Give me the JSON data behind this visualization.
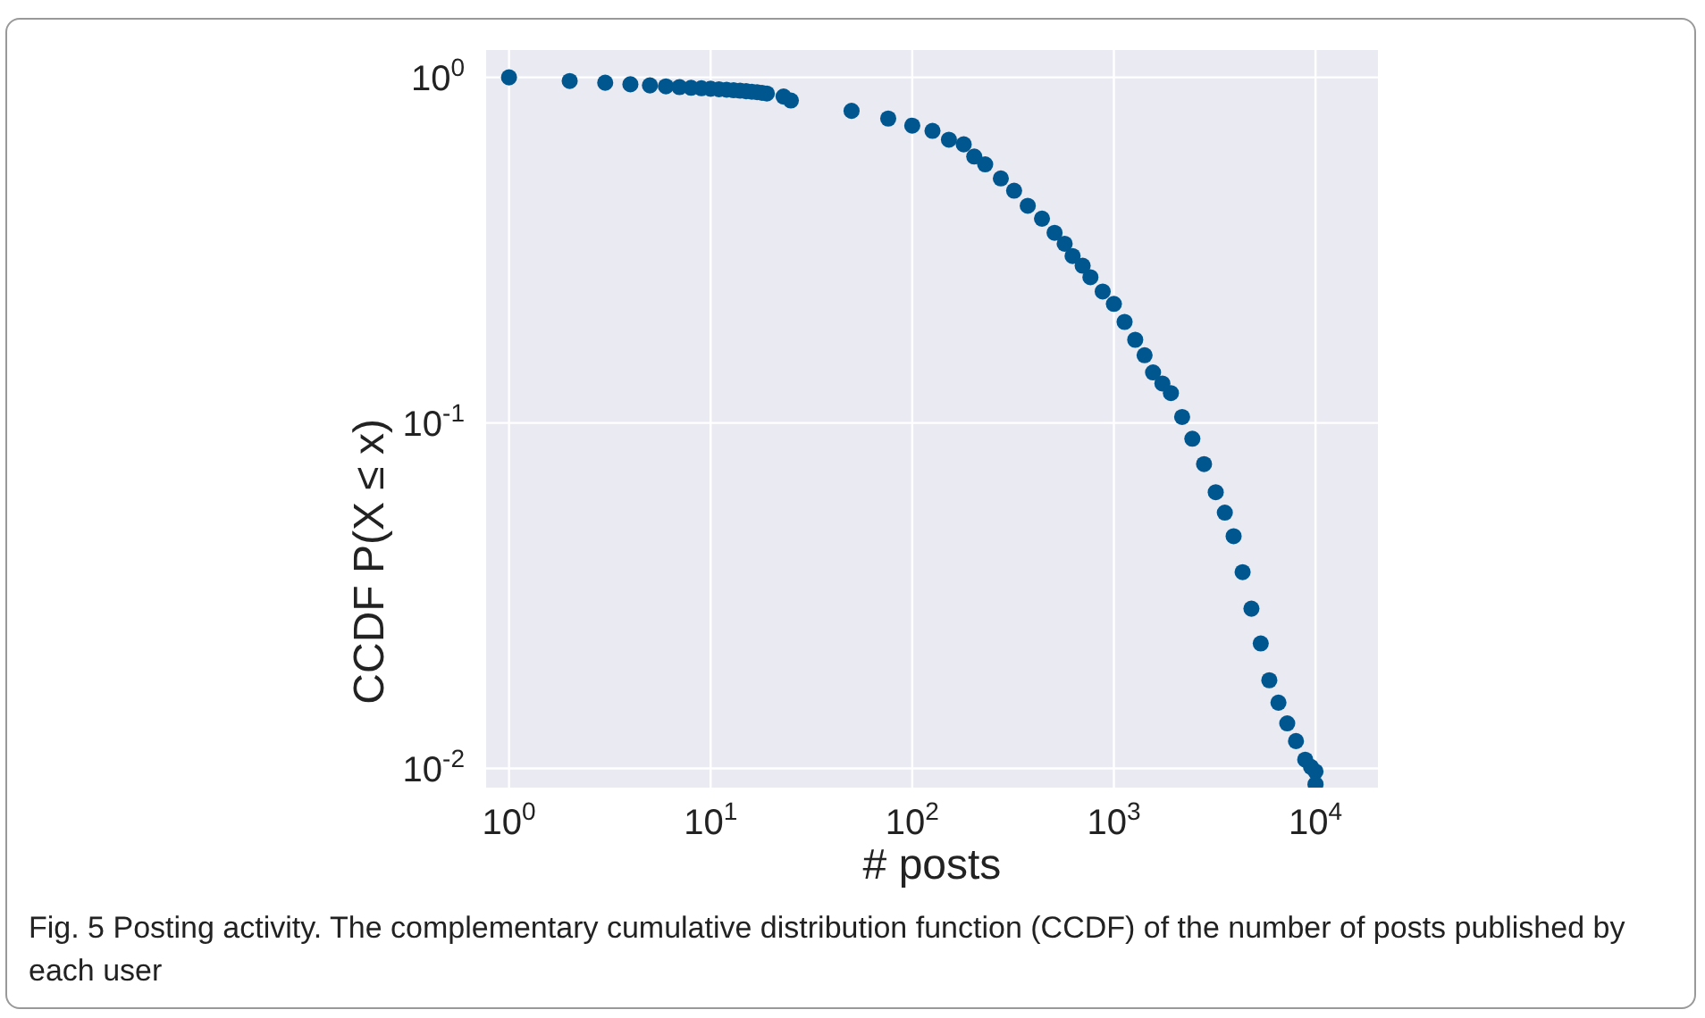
{
  "chart_data": {
    "type": "scatter",
    "xlabel": "# posts",
    "ylabel": "CCDF P(X ≤ x)",
    "log": "xy",
    "grid": true,
    "marker": "circle",
    "xlim": [
      0.77,
      20400
    ],
    "ylim": [
      0.0088,
      1.2
    ],
    "xticks": [
      {
        "value": 1,
        "label": "10$^{0}$"
      },
      {
        "value": 10,
        "label": "10$^{1}$"
      },
      {
        "value": 100,
        "label": "10$^{2}$"
      },
      {
        "value": 1000,
        "label": "10$^{3}$"
      },
      {
        "value": 10000,
        "label": "10$^{4}$"
      }
    ],
    "yticks": [
      {
        "value": 0.01,
        "label": "10$^{-2}$"
      },
      {
        "value": 0.1,
        "label": "10$^{-1}$"
      },
      {
        "value": 1,
        "label": "10$^{0}$"
      }
    ],
    "x": [
      1,
      2,
      3,
      4,
      5,
      6,
      7,
      8,
      9,
      10,
      11,
      12,
      13,
      14,
      15,
      16,
      17,
      18,
      19,
      23,
      25,
      50,
      76,
      100,
      126,
      152,
      180,
      203,
      230,
      275,
      320,
      374,
      440,
      508,
      570,
      624,
      700,
      765,
      880,
      1000,
      1130,
      1276,
      1420,
      1564,
      1740,
      1918,
      2180,
      2450,
      2800,
      3200,
      3550,
      3925,
      4350,
      4810,
      5350,
      5900,
      6550,
      7240,
      8000,
      8890,
      9500,
      10000,
      10000
    ],
    "series": [
      {
        "color": "#00578f",
        "values": [
          1.0,
          0.976,
          0.965,
          0.955,
          0.948,
          0.942,
          0.937,
          0.933,
          0.93,
          0.927,
          0.924,
          0.921,
          0.918,
          0.915,
          0.912,
          0.909,
          0.906,
          0.902,
          0.898,
          0.88,
          0.857,
          0.8,
          0.76,
          0.725,
          0.7,
          0.66,
          0.64,
          0.59,
          0.56,
          0.51,
          0.47,
          0.425,
          0.39,
          0.355,
          0.33,
          0.304,
          0.285,
          0.264,
          0.24,
          0.221,
          0.196,
          0.174,
          0.157,
          0.14,
          0.13,
          0.122,
          0.104,
          0.09,
          0.076,
          0.063,
          0.055,
          0.047,
          0.037,
          0.029,
          0.023,
          0.018,
          0.0155,
          0.0135,
          0.012,
          0.0106,
          0.0101,
          0.0098,
          0.009
        ]
      }
    ],
    "annotations": [
      "Fig. 5  Posting activity. The complementary cumulative distribution function (CCDF) of the number of posts published by each user"
    ]
  }
}
